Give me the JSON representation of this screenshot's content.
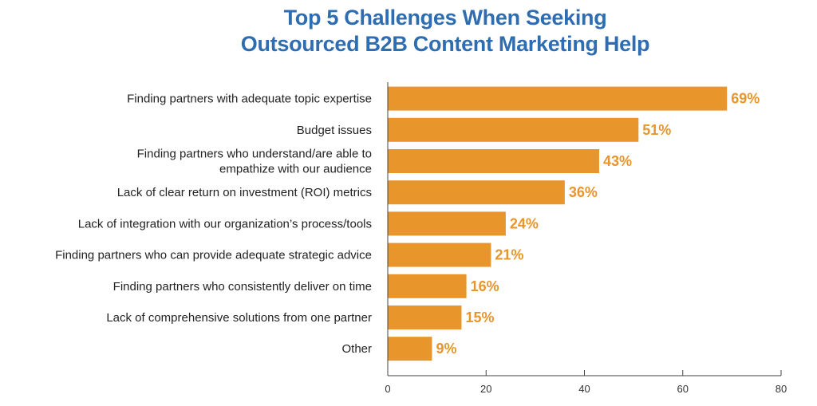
{
  "chart_data": {
    "type": "bar",
    "orientation": "horizontal",
    "title_lines": [
      "Top 5 Challenges When Seeking",
      "Outsourced B2B Content Marketing Help"
    ],
    "categories": [
      [
        "Finding partners with adequate topic expertise"
      ],
      [
        "Budget issues"
      ],
      [
        "Finding partners who understand/are able to",
        "empathize with our audience"
      ],
      [
        "Lack of clear return on investment (ROI) metrics"
      ],
      [
        "Lack of integration with our organization’s process/tools"
      ],
      [
        "Finding partners who can provide adequate strategic advice"
      ],
      [
        "Finding partners who consistently deliver on time"
      ],
      [
        "Lack of comprehensive solutions from one partner"
      ],
      [
        "Other"
      ]
    ],
    "values": [
      69,
      51,
      43,
      36,
      24,
      21,
      16,
      15,
      9
    ],
    "value_labels": [
      "69%",
      "51%",
      "43%",
      "36%",
      "24%",
      "21%",
      "16%",
      "15%",
      "9%"
    ],
    "xlim": [
      0,
      80
    ],
    "xticks": [
      0,
      20,
      40,
      60,
      80
    ],
    "xlabel": "",
    "ylabel": "",
    "grid": false,
    "bar_color": "#e8952b",
    "value_label_color": "#e8952b",
    "title_color": "#2f6db2"
  }
}
